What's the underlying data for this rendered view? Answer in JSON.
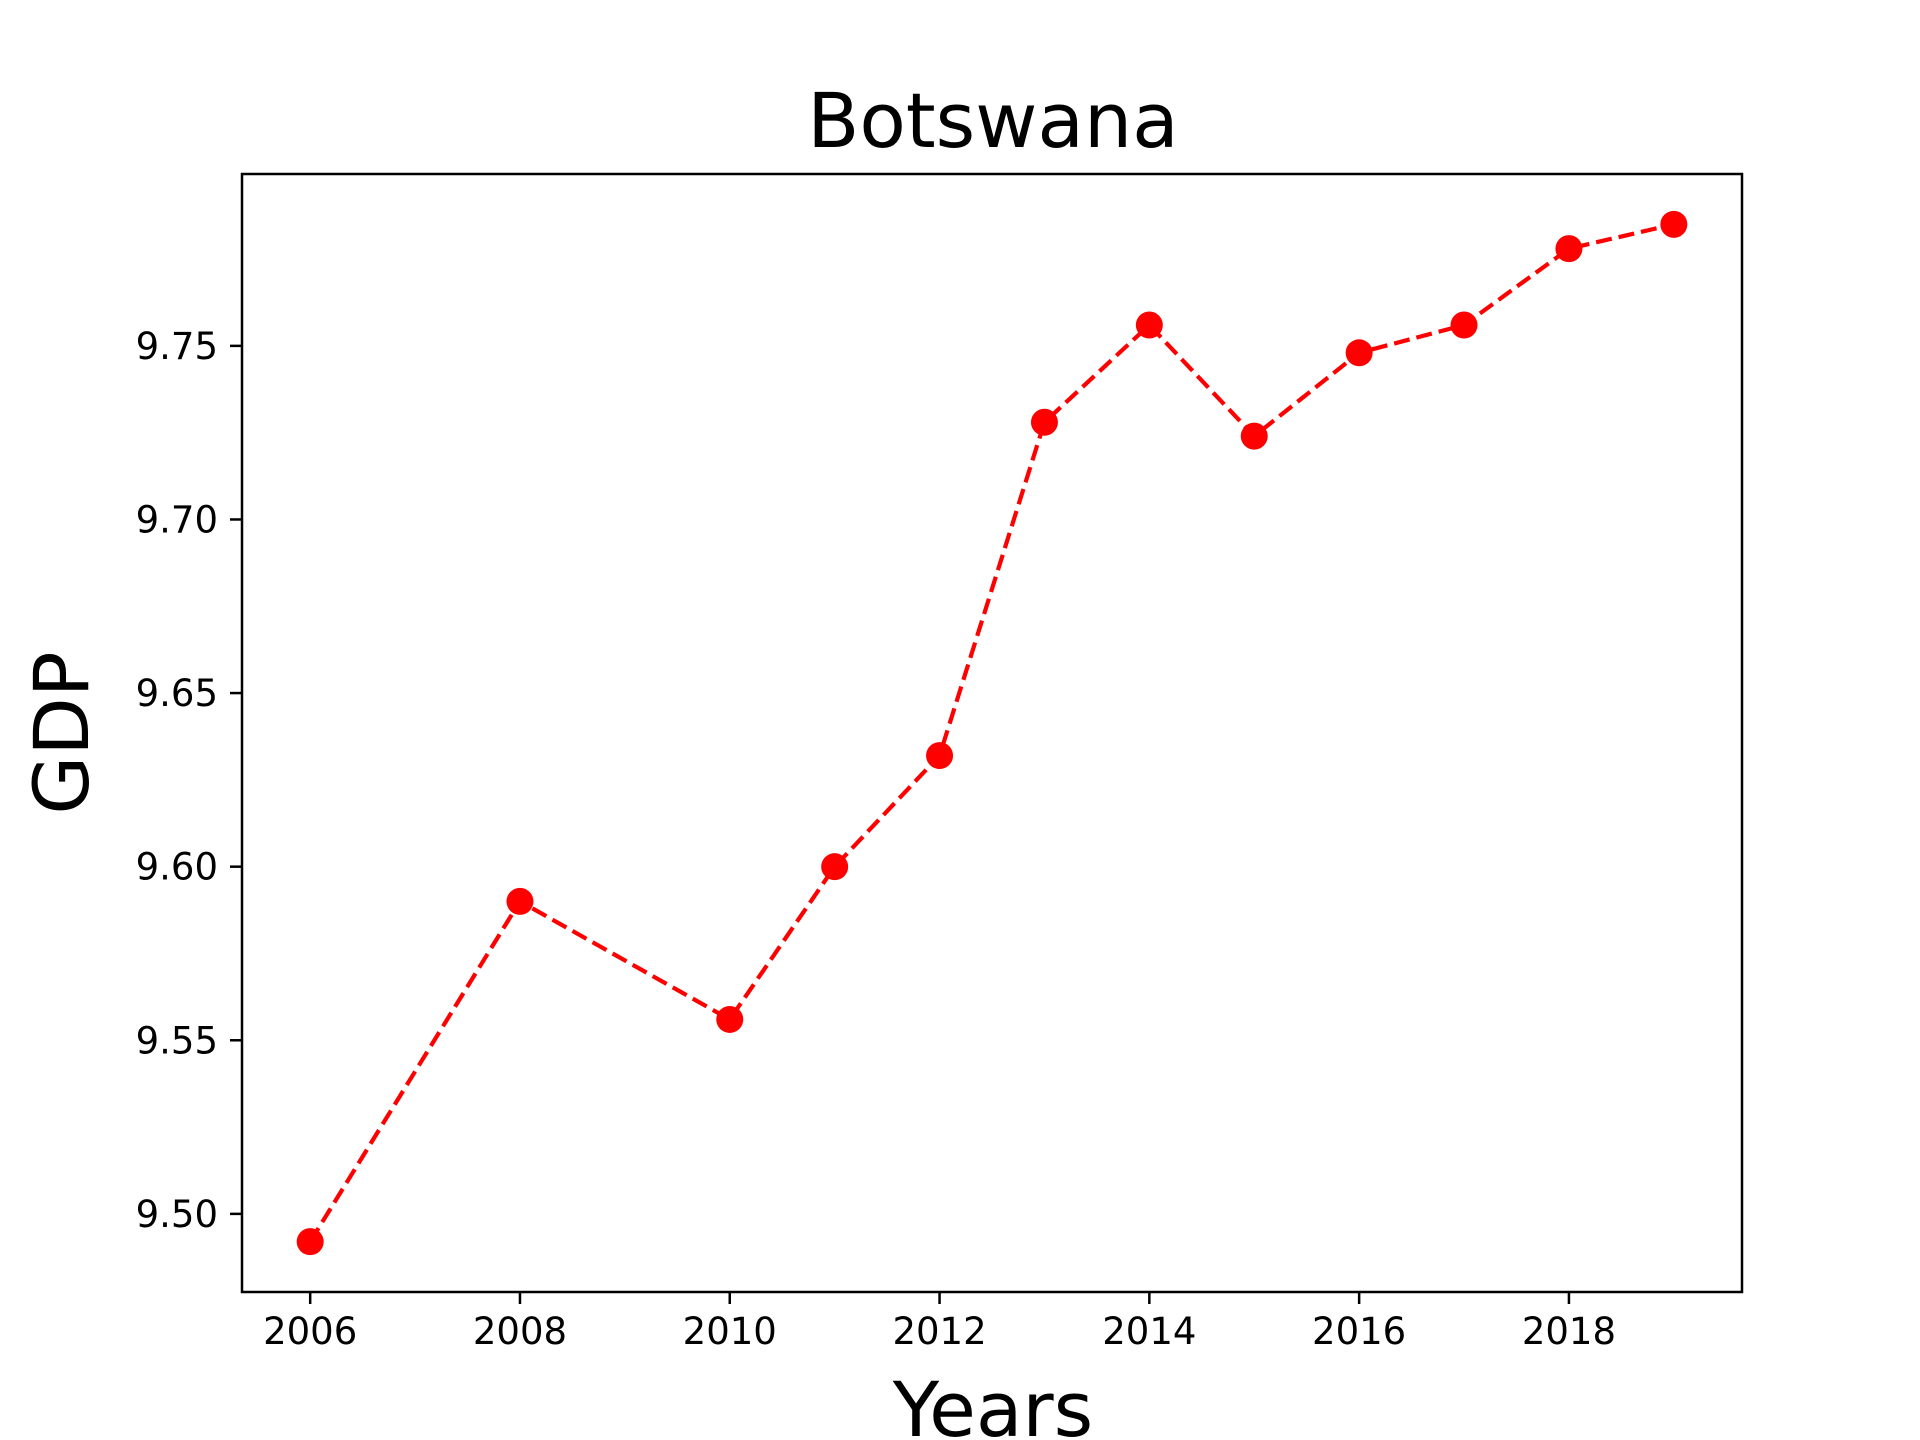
{
  "chart_data": {
    "type": "line",
    "title": "Botswana",
    "xlabel": "Years",
    "ylabel": "GDP",
    "x": [
      2006,
      2008,
      2010,
      2011,
      2012,
      2013,
      2014,
      2015,
      2016,
      2017,
      2018,
      2019
    ],
    "series": [
      {
        "values": [
          9.492,
          9.59,
          9.556,
          9.6,
          9.632,
          9.728,
          9.756,
          9.724,
          9.748,
          9.756,
          9.778,
          9.785
        ],
        "color": "#ff0000",
        "line_style": "dashed",
        "marker": "circle"
      }
    ],
    "xlim": [
      2005.35,
      2019.65
    ],
    "ylim": [
      9.4775,
      9.7995
    ],
    "xticks": [
      "2006",
      "2008",
      "2010",
      "2012",
      "2014",
      "2016",
      "2018"
    ],
    "yticks": [
      "9.50",
      "9.55",
      "9.60",
      "9.65",
      "9.70",
      "9.75"
    ],
    "grid": false,
    "legend": "none"
  }
}
